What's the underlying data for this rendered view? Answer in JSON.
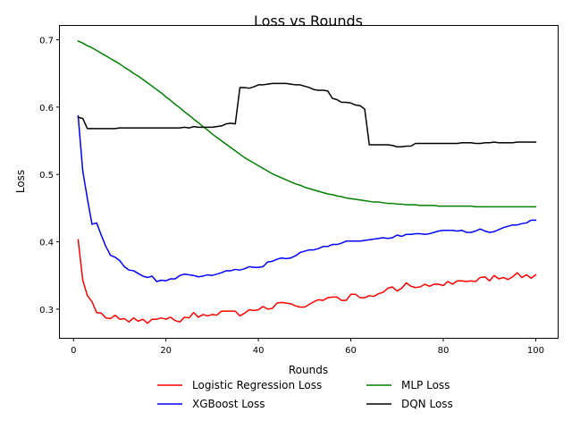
{
  "chart_data": {
    "type": "line",
    "title": "Loss vs Rounds",
    "xlabel": "Rounds",
    "ylabel": "Loss",
    "xlim": [
      -2.95,
      104.95
    ],
    "ylim": [
      0.2574,
      0.7218
    ],
    "xticks": [
      0,
      20,
      40,
      60,
      80,
      100
    ],
    "xtick_labels": [
      "0",
      "20",
      "40",
      "60",
      "80",
      "100"
    ],
    "yticks": [
      0.3,
      0.4,
      0.5,
      0.6,
      0.7
    ],
    "ytick_labels": [
      "0.3",
      "0.4",
      "0.5",
      "0.6",
      "0.7"
    ],
    "grid": false,
    "legend_position": "below plot, 2 columns",
    "x_start": 1,
    "series": [
      {
        "name": "Logistic Regression Loss",
        "color": "#ff0000",
        "values": [
          0.403,
          0.343,
          0.32,
          0.311,
          0.295,
          0.294,
          0.287,
          0.286,
          0.291,
          0.285,
          0.286,
          0.281,
          0.287,
          0.282,
          0.285,
          0.279,
          0.285,
          0.285,
          0.287,
          0.285,
          0.288,
          0.283,
          0.281,
          0.288,
          0.287,
          0.295,
          0.288,
          0.292,
          0.29,
          0.292,
          0.291,
          0.297,
          0.297,
          0.297,
          0.297,
          0.29,
          0.294,
          0.299,
          0.298,
          0.299,
          0.304,
          0.3,
          0.301,
          0.309,
          0.31,
          0.309,
          0.308,
          0.305,
          0.303,
          0.303,
          0.307,
          0.311,
          0.314,
          0.313,
          0.317,
          0.318,
          0.318,
          0.313,
          0.313,
          0.322,
          0.322,
          0.317,
          0.317,
          0.32,
          0.319,
          0.323,
          0.325,
          0.331,
          0.333,
          0.327,
          0.331,
          0.339,
          0.334,
          0.332,
          0.333,
          0.337,
          0.334,
          0.337,
          0.337,
          0.335,
          0.341,
          0.337,
          0.342,
          0.342,
          0.341,
          0.342,
          0.341,
          0.347,
          0.348,
          0.342,
          0.35,
          0.345,
          0.347,
          0.344,
          0.348,
          0.354,
          0.347,
          0.351,
          0.346,
          0.351
        ]
      },
      {
        "name": "XGBoost Loss",
        "color": "#0000ff",
        "values": [
          0.587,
          0.505,
          0.464,
          0.426,
          0.428,
          0.41,
          0.393,
          0.38,
          0.377,
          0.372,
          0.363,
          0.358,
          0.357,
          0.353,
          0.349,
          0.347,
          0.349,
          0.341,
          0.343,
          0.342,
          0.345,
          0.345,
          0.35,
          0.352,
          0.351,
          0.35,
          0.348,
          0.349,
          0.351,
          0.35,
          0.352,
          0.354,
          0.357,
          0.357,
          0.359,
          0.358,
          0.36,
          0.363,
          0.362,
          0.362,
          0.363,
          0.37,
          0.371,
          0.374,
          0.376,
          0.375,
          0.376,
          0.379,
          0.384,
          0.386,
          0.388,
          0.388,
          0.39,
          0.393,
          0.393,
          0.396,
          0.396,
          0.398,
          0.401,
          0.401,
          0.401,
          0.401,
          0.402,
          0.403,
          0.404,
          0.405,
          0.406,
          0.405,
          0.406,
          0.41,
          0.408,
          0.411,
          0.411,
          0.412,
          0.412,
          0.411,
          0.412,
          0.414,
          0.416,
          0.417,
          0.417,
          0.417,
          0.416,
          0.417,
          0.414,
          0.414,
          0.416,
          0.419,
          0.416,
          0.414,
          0.415,
          0.418,
          0.421,
          0.423,
          0.425,
          0.425,
          0.427,
          0.428,
          0.432,
          0.432
        ]
      },
      {
        "name": "MLP Loss",
        "color": "#008000",
        "values": [
          0.698,
          0.695,
          0.691,
          0.688,
          0.684,
          0.68,
          0.676,
          0.672,
          0.668,
          0.664,
          0.659,
          0.655,
          0.65,
          0.646,
          0.641,
          0.636,
          0.631,
          0.626,
          0.621,
          0.615,
          0.61,
          0.604,
          0.599,
          0.593,
          0.588,
          0.582,
          0.577,
          0.571,
          0.566,
          0.56,
          0.555,
          0.55,
          0.545,
          0.54,
          0.535,
          0.53,
          0.525,
          0.521,
          0.517,
          0.513,
          0.509,
          0.505,
          0.501,
          0.498,
          0.495,
          0.492,
          0.489,
          0.486,
          0.484,
          0.481,
          0.479,
          0.477,
          0.475,
          0.473,
          0.471,
          0.47,
          0.468,
          0.467,
          0.465,
          0.464,
          0.463,
          0.462,
          0.461,
          0.46,
          0.459,
          0.459,
          0.458,
          0.457,
          0.457,
          0.456,
          0.456,
          0.455,
          0.455,
          0.455,
          0.454,
          0.454,
          0.454,
          0.454,
          0.453,
          0.453,
          0.453,
          0.453,
          0.453,
          0.453,
          0.453,
          0.453,
          0.452,
          0.452,
          0.452,
          0.452,
          0.452,
          0.452,
          0.452,
          0.452,
          0.452,
          0.452,
          0.452,
          0.452,
          0.452,
          0.452
        ]
      },
      {
        "name": "DQN Loss",
        "color": "#000000",
        "values": [
          0.585,
          0.583,
          0.568,
          0.568,
          0.568,
          0.568,
          0.568,
          0.568,
          0.568,
          0.569,
          0.569,
          0.569,
          0.569,
          0.569,
          0.569,
          0.569,
          0.569,
          0.569,
          0.569,
          0.569,
          0.569,
          0.569,
          0.569,
          0.57,
          0.569,
          0.571,
          0.57,
          0.57,
          0.57,
          0.57,
          0.571,
          0.572,
          0.575,
          0.576,
          0.575,
          0.629,
          0.629,
          0.628,
          0.63,
          0.633,
          0.633,
          0.634,
          0.635,
          0.635,
          0.635,
          0.635,
          0.634,
          0.633,
          0.633,
          0.631,
          0.629,
          0.626,
          0.625,
          0.625,
          0.624,
          0.613,
          0.611,
          0.607,
          0.607,
          0.606,
          0.603,
          0.602,
          0.597,
          0.544,
          0.544,
          0.544,
          0.544,
          0.544,
          0.543,
          0.541,
          0.541,
          0.542,
          0.542,
          0.546,
          0.546,
          0.546,
          0.546,
          0.546,
          0.546,
          0.546,
          0.546,
          0.546,
          0.546,
          0.547,
          0.547,
          0.547,
          0.546,
          0.546,
          0.547,
          0.547,
          0.548,
          0.547,
          0.547,
          0.547,
          0.547,
          0.548,
          0.548,
          0.548,
          0.548,
          0.548
        ]
      }
    ]
  }
}
